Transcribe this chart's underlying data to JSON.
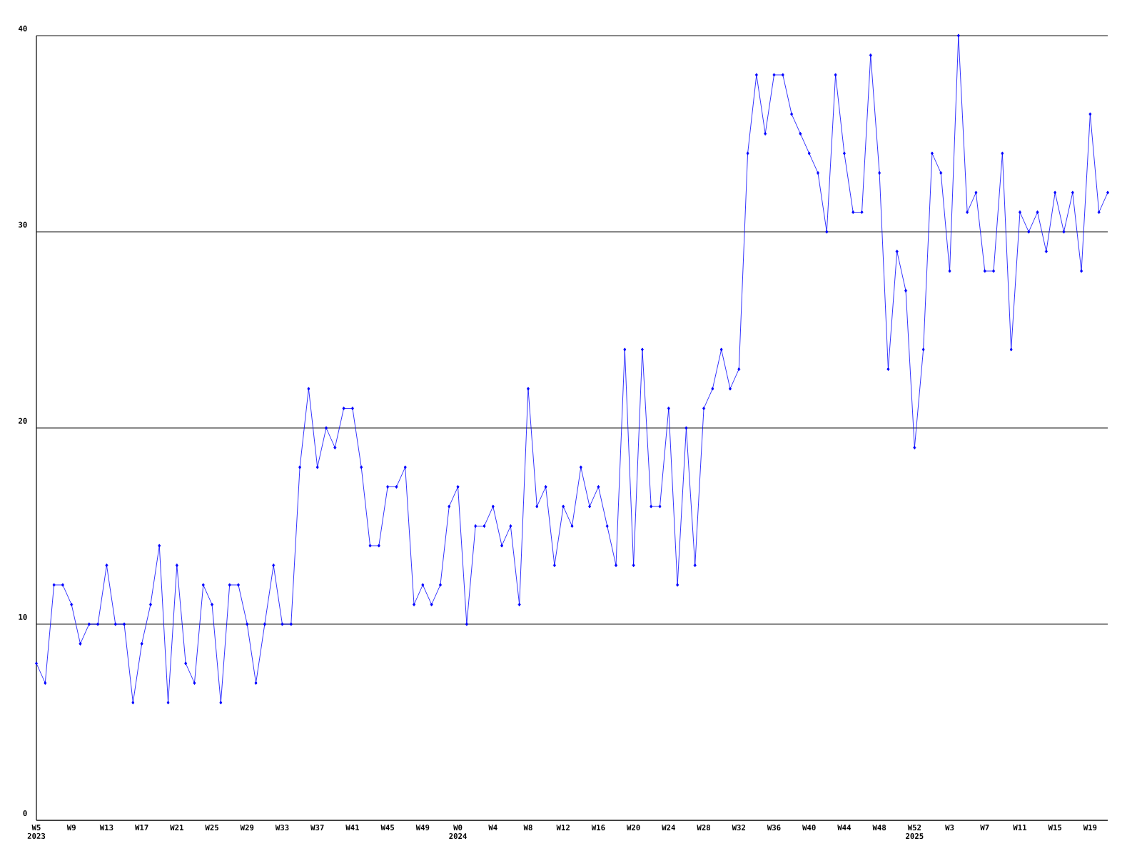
{
  "chart_data": {
    "type": "line",
    "categories": [
      "W5 2023",
      null,
      null,
      null,
      "W9",
      null,
      null,
      null,
      "W13",
      null,
      null,
      null,
      "W17",
      null,
      null,
      null,
      "W21",
      null,
      null,
      null,
      "W25",
      null,
      null,
      null,
      "W29",
      null,
      null,
      null,
      "W33",
      null,
      null,
      null,
      "W37",
      null,
      null,
      null,
      "W41",
      null,
      null,
      null,
      "W45",
      null,
      null,
      null,
      "W49",
      null,
      null,
      null,
      "W0 2024",
      null,
      null,
      null,
      "W4",
      null,
      null,
      null,
      "W8",
      null,
      null,
      null,
      "W12",
      null,
      null,
      null,
      "W16",
      null,
      null,
      null,
      "W20",
      null,
      null,
      null,
      "W24",
      null,
      null,
      null,
      "W28",
      null,
      null,
      null,
      "W32",
      null,
      null,
      null,
      "W36",
      null,
      null,
      null,
      "W40",
      null,
      null,
      null,
      "W44",
      null,
      null,
      null,
      "W48",
      null,
      null,
      null,
      "W52 2025",
      null,
      null,
      null,
      "W3",
      null,
      null,
      null,
      "W7",
      null,
      null,
      null,
      "W11",
      null,
      null,
      null,
      "W15",
      null,
      null,
      null,
      "W19",
      null,
      null
    ],
    "values": [
      8,
      7,
      12,
      12,
      11,
      9,
      10,
      10,
      13,
      10,
      10,
      6,
      9,
      11,
      14,
      6,
      13,
      8,
      7,
      12,
      11,
      6,
      12,
      12,
      10,
      7,
      10,
      13,
      10,
      10,
      18,
      22,
      18,
      20,
      19,
      21,
      21,
      18,
      14,
      14,
      17,
      17,
      18,
      11,
      12,
      11,
      12,
      16,
      17,
      10,
      15,
      15,
      16,
      14,
      15,
      11,
      22,
      16,
      17,
      13,
      16,
      15,
      18,
      16,
      17,
      15,
      13,
      24,
      13,
      24,
      16,
      16,
      21,
      12,
      20,
      13,
      21,
      22,
      24,
      22,
      23,
      34,
      38,
      35,
      38,
      38,
      36,
      35,
      34,
      33,
      30,
      38,
      34,
      31,
      31,
      39,
      33,
      23,
      29,
      27,
      19,
      24,
      34,
      33,
      28,
      40,
      31,
      32,
      28,
      28,
      34,
      24,
      31,
      30,
      31,
      29,
      32,
      30,
      32,
      28,
      36,
      31,
      32
    ],
    "color": "#0000ff",
    "marker": "diamond",
    "line_style": "solid",
    "ylim": [
      0,
      40
    ],
    "yticks": [
      0,
      10,
      20,
      30,
      40
    ],
    "grid": "y"
  }
}
